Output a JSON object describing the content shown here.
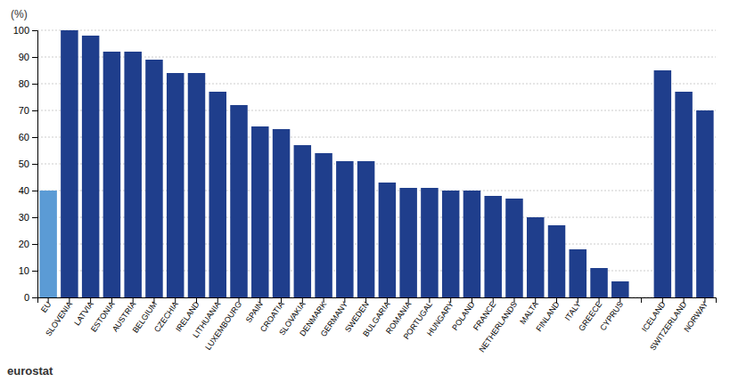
{
  "chart_data": {
    "type": "bar",
    "ylabel": "(%)",
    "annotations": [
      {
        "text": "eurostat"
      }
    ],
    "categories": [
      "EU",
      "SLOVENIA",
      "LATVIA",
      "ESTONIA",
      "AUSTRIA",
      "BELGIUM",
      "CZECHIA",
      "IRELAND",
      "LITHUANIA",
      "LUXEMBOURG",
      "SPAIN",
      "CROATIA",
      "SLOVAKIA",
      "DENMARK",
      "GERMANY",
      "SWEDEN",
      "BULGARIA",
      "ROMANIA",
      "PORTUGAL",
      "HUNGARY",
      "POLAND",
      "FRANCE",
      "NETHERLANDS",
      "MALTA",
      "FINLAND",
      "ITALY",
      "GREECE",
      "CYPRUS",
      null,
      "ICELAND",
      "SWITZERLAND",
      "NORWAY"
    ],
    "values": [
      40,
      100,
      98,
      92,
      92,
      89,
      84,
      84,
      77,
      72,
      64,
      63,
      57,
      54,
      51,
      51,
      43,
      41,
      41,
      40,
      40,
      38,
      37,
      30,
      27,
      18,
      11,
      6,
      null,
      85,
      77,
      70
    ],
    "colors": [
      "#5b9bd5",
      "#1f3e8c",
      "#1f3e8c",
      "#1f3e8c",
      "#1f3e8c",
      "#1f3e8c",
      "#1f3e8c",
      "#1f3e8c",
      "#1f3e8c",
      "#1f3e8c",
      "#1f3e8c",
      "#1f3e8c",
      "#1f3e8c",
      "#1f3e8c",
      "#1f3e8c",
      "#1f3e8c",
      "#1f3e8c",
      "#1f3e8c",
      "#1f3e8c",
      "#1f3e8c",
      "#1f3e8c",
      "#1f3e8c",
      "#1f3e8c",
      "#1f3e8c",
      "#1f3e8c",
      "#1f3e8c",
      "#1f3e8c",
      "#1f3e8c",
      null,
      "#1f3e8c",
      "#1f3e8c",
      "#1f3e8c"
    ],
    "ylim": [
      0,
      100
    ],
    "yticks": [
      0,
      10,
      20,
      30,
      40,
      50,
      60,
      70,
      80,
      90,
      100
    ],
    "grid": true
  }
}
